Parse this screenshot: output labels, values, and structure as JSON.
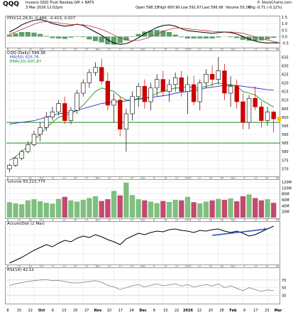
{
  "header": {
    "symbol": "QQQ",
    "name": "Invesco QQQ Trust Nasdaq GM + BATS",
    "date": "3 Mar 2026 12:02pm",
    "open": "Open 598.33",
    "high": "High 600.90",
    "low": "Low 591.67",
    "close": "Last 596.98",
    "volume": "Volume 50.2M",
    "change": "Chg -0.71 (-0.12%)",
    "watermark": "© StockCharts.com"
  },
  "colors": {
    "up": "#000000",
    "down": "#cc0000",
    "ma50": "#2b2bd6",
    "ema20": "#119411",
    "hline": "#1a8a1a",
    "vol_up": "#7fbf7f",
    "vol_down": "#c24a6e",
    "ppo_hist": "#5aa06a",
    "accum": "#000000",
    "arrow": "#1f4fbf",
    "rsi": "#8a8aa8",
    "grid": "#e4e4e4"
  },
  "chart_data": [
    {
      "type": "line",
      "panel": "ppo",
      "title": "PPO(12,26,9) -0.486, -0.493, 0.007",
      "ylim": [
        -0.8,
        1.5
      ],
      "yticks": [
        "1.5",
        "1.0",
        "0.5",
        "0.0",
        "-0.5"
      ],
      "series": [
        {
          "name": "PPO(12,26,9)",
          "values": [
            0.35,
            0.6,
            0.9,
            1.1,
            1.25,
            1.3,
            1.2,
            1.0,
            0.9,
            0.8,
            0.85,
            0.95,
            0.85,
            0.6,
            0.35,
            0.1,
            -0.25,
            -0.5,
            -0.6,
            -0.55,
            -0.35,
            -0.1,
            0.2,
            0.45,
            0.7,
            0.85,
            0.9,
            0.8,
            0.6,
            0.45,
            0.4,
            0.35,
            0.3,
            0.25,
            0.3,
            0.35,
            0.3,
            0.2,
            0.0,
            -0.2,
            -0.35,
            -0.45,
            -0.5,
            -0.48,
            -0.49
          ]
        },
        {
          "name": "Signal",
          "values": [
            0.2,
            0.35,
            0.55,
            0.75,
            0.95,
            1.1,
            1.15,
            1.12,
            1.05,
            0.98,
            0.93,
            0.92,
            0.9,
            0.82,
            0.7,
            0.55,
            0.35,
            0.12,
            -0.1,
            -0.25,
            -0.32,
            -0.3,
            -0.18,
            0.0,
            0.2,
            0.4,
            0.55,
            0.65,
            0.65,
            0.6,
            0.55,
            0.5,
            0.45,
            0.4,
            0.37,
            0.36,
            0.35,
            0.32,
            0.25,
            0.12,
            -0.02,
            -0.15,
            -0.28,
            -0.38,
            -0.49
          ]
        }
      ],
      "histogram": [
        0.15,
        0.25,
        0.35,
        0.35,
        0.3,
        0.2,
        0.05,
        -0.12,
        -0.15,
        -0.18,
        -0.08,
        0.03,
        -0.05,
        -0.22,
        -0.35,
        -0.45,
        -0.6,
        -0.62,
        -0.5,
        -0.3,
        -0.03,
        0.2,
        0.38,
        0.45,
        0.5,
        0.45,
        0.35,
        0.15,
        -0.05,
        -0.15,
        -0.15,
        -0.15,
        -0.15,
        -0.15,
        -0.07,
        -0.01,
        -0.05,
        -0.12,
        -0.25,
        -0.32,
        -0.33,
        -0.3,
        -0.22,
        -0.1,
        0.01
      ]
    },
    {
      "type": "candlestick",
      "panel": "price",
      "title": "QQQ (Daily) 599.38",
      "legend": [
        "MA(50) 615.76",
        "EMA(20) 605.87"
      ],
      "ylim": [
        566,
        638
      ],
      "yticks": [
        "635",
        "630",
        "625",
        "620",
        "615",
        "610",
        "605",
        "600",
        "595",
        "590",
        "585",
        "580",
        "575",
        "570"
      ],
      "horizontal_lines": [
        597,
        585
      ],
      "x": [
        "Sep 8",
        "Sep 15",
        "Sep 22",
        "Sep 29",
        "Oct 6",
        "Oct 13",
        "Oct 20",
        "Oct 27",
        "Nov 3",
        "Nov 10",
        "Nov 17",
        "Nov 24",
        "Dec 1",
        "Dec 8",
        "Dec 15",
        "Dec 22",
        "Dec 29",
        "Jan 5",
        "Jan 12",
        "Jan 20",
        "Jan 26",
        "Feb 2",
        "Feb 9",
        "Feb 17",
        "Feb 23",
        "Mar 2"
      ],
      "ohlc": [
        [
          570,
          573,
          568,
          572
        ],
        [
          572,
          577,
          571,
          576
        ],
        [
          576,
          581,
          575,
          580
        ],
        [
          580,
          586,
          579,
          584
        ],
        [
          584,
          592,
          583,
          590
        ],
        [
          590,
          597,
          586,
          594
        ],
        [
          594,
          603,
          592,
          600
        ],
        [
          600,
          606,
          598,
          603
        ],
        [
          603,
          610,
          601,
          608
        ],
        [
          608,
          612,
          596,
          598
        ],
        [
          598,
          606,
          596,
          604
        ],
        [
          604,
          616,
          602,
          614
        ],
        [
          614,
          622,
          612,
          620
        ],
        [
          620,
          628,
          617,
          626
        ],
        [
          626,
          632,
          624,
          629
        ],
        [
          629,
          634,
          619,
          621
        ],
        [
          621,
          626,
          604,
          607
        ],
        [
          607,
          614,
          597,
          610
        ],
        [
          610,
          612,
          589,
          593
        ],
        [
          593,
          605,
          580,
          602
        ],
        [
          602,
          615,
          598,
          612
        ],
        [
          612,
          620,
          606,
          618
        ],
        [
          618,
          622,
          605,
          609
        ],
        [
          609,
          620,
          604,
          617
        ],
        [
          617,
          625,
          612,
          622
        ],
        [
          622,
          627,
          612,
          615
        ],
        [
          615,
          622,
          609,
          619
        ],
        [
          619,
          626,
          615,
          623
        ],
        [
          623,
          627,
          612,
          615
        ],
        [
          615,
          624,
          602,
          619
        ],
        [
          619,
          624,
          607,
          609
        ],
        [
          609,
          622,
          604,
          620
        ],
        [
          620,
          628,
          617,
          625
        ],
        [
          625,
          630,
          618,
          622
        ],
        [
          622,
          635,
          619,
          627
        ],
        [
          627,
          631,
          610,
          614
        ],
        [
          614,
          624,
          606,
          618
        ],
        [
          618,
          622,
          605,
          609
        ],
        [
          609,
          614,
          593,
          597
        ],
        [
          597,
          613,
          593,
          611
        ],
        [
          611,
          618,
          604,
          606
        ],
        [
          606,
          609,
          594,
          598
        ],
        [
          598,
          606,
          595,
          603
        ],
        [
          603,
          604,
          591,
          599
        ]
      ],
      "ma50": [
        596,
        596.5,
        597,
        597.5,
        598,
        599,
        600,
        601,
        602,
        602.5,
        603,
        604,
        605,
        606,
        607,
        608,
        608.5,
        609,
        609,
        609.5,
        610,
        610.5,
        611,
        611.5,
        612,
        612.5,
        613,
        614,
        614.5,
        615,
        615.5,
        616,
        617,
        617.5,
        618,
        618.5,
        618.5,
        618.5,
        618,
        617.5,
        617,
        616.5,
        616,
        615.8
      ],
      "ema20": [
        575,
        577,
        580,
        583,
        587,
        590,
        594,
        597,
        600,
        601,
        602,
        604,
        607,
        611,
        615,
        617,
        616,
        615,
        612,
        610,
        610,
        611,
        611,
        612,
        614,
        615,
        616,
        617,
        617,
        618,
        617,
        617,
        618,
        619,
        620,
        619,
        619,
        618,
        615,
        614,
        613,
        610,
        608,
        605.9
      ]
    },
    {
      "type": "bar",
      "panel": "volume",
      "title": "Volume 50,213,774",
      "ylim": [
        0,
        120
      ],
      "yticks": [
        "120M",
        "100M",
        "80M",
        "60M",
        "40M",
        "20M"
      ],
      "values": [
        52,
        48,
        45,
        58,
        62,
        55,
        50,
        47,
        63,
        70,
        58,
        54,
        60,
        66,
        72,
        56,
        62,
        90,
        75,
        118,
        76,
        62,
        58,
        54,
        49,
        56,
        53,
        60,
        58,
        70,
        52,
        48,
        54,
        58,
        63,
        60,
        65,
        55,
        72,
        78,
        66,
        58,
        62,
        50
      ],
      "up": [
        1,
        1,
        1,
        1,
        1,
        1,
        1,
        1,
        1,
        0,
        1,
        1,
        1,
        1,
        1,
        0,
        0,
        1,
        0,
        1,
        1,
        1,
        0,
        1,
        1,
        0,
        1,
        1,
        0,
        1,
        0,
        1,
        1,
        0,
        1,
        0,
        1,
        0,
        0,
        1,
        0,
        0,
        1,
        0
      ]
    },
    {
      "type": "line",
      "panel": "accum",
      "title": "Accum/Dist (2 Mar)",
      "series": [
        {
          "name": "Accum/Dist",
          "values": [
            10,
            14,
            18,
            23,
            28,
            32,
            36,
            33,
            38,
            42,
            40,
            45,
            48,
            46,
            50,
            47,
            43,
            40,
            36,
            44,
            48,
            52,
            50,
            53,
            55,
            54,
            57,
            58,
            56,
            55,
            53,
            56,
            55,
            57,
            58,
            55,
            53,
            55,
            52,
            48,
            50,
            54,
            58,
            62
          ]
        }
      ]
    },
    {
      "type": "line",
      "panel": "rsi",
      "title": "RSI(14) 42.12",
      "ylim": [
        10,
        90
      ],
      "yticks": [
        "70",
        "50",
        "30"
      ],
      "series": [
        {
          "name": "RSI(14)",
          "values": [
            55,
            60,
            63,
            66,
            68,
            70,
            71,
            68,
            69,
            66,
            63,
            62,
            64,
            66,
            68,
            64,
            56,
            52,
            45,
            50,
            55,
            58,
            52,
            56,
            60,
            55,
            57,
            60,
            54,
            58,
            52,
            55,
            58,
            54,
            60,
            50,
            55,
            48,
            42,
            50,
            45,
            40,
            44,
            42
          ]
        }
      ]
    }
  ],
  "xaxis": {
    "labels": [
      "8",
      "15",
      "22",
      "Oct",
      "6",
      "13",
      "20",
      "27",
      "Nov",
      "10",
      "17",
      "24",
      "Dec",
      "8",
      "15",
      "22",
      "2026",
      "12",
      "20",
      "26",
      "Feb",
      "9",
      "17",
      "23",
      "Mar"
    ]
  }
}
